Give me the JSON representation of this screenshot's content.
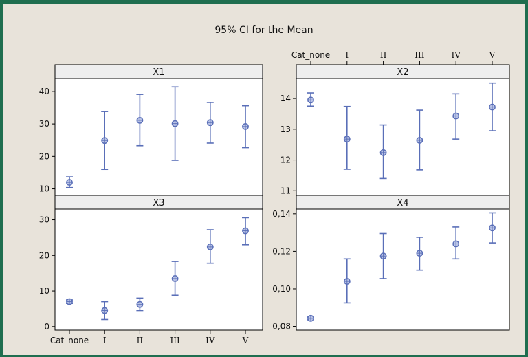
{
  "chart_data": {
    "type": "interval",
    "title": "95% CI for the Mean",
    "categories": [
      "Cat_none",
      "I",
      "II",
      "III",
      "IV",
      "V"
    ],
    "colors": {
      "frame": "#1f6e4f",
      "background": "#e8e3da",
      "panel": "#ffffff",
      "strip": "#eeeeee",
      "marker": "#5a6fb8",
      "interval": "#5a6fb8"
    },
    "panels": [
      {
        "name": "X1",
        "ylim": [
          8,
          44
        ],
        "yticks": [
          10,
          20,
          30,
          40
        ],
        "yticklabels": [
          "10",
          "20",
          "30",
          "40"
        ],
        "mean": [
          12.0,
          24.9,
          31.1,
          30.1,
          30.4,
          29.2
        ],
        "lower": [
          10.4,
          16.0,
          23.3,
          18.8,
          24.1,
          22.7
        ],
        "upper": [
          13.7,
          33.8,
          39.1,
          41.4,
          36.6,
          35.6
        ]
      },
      {
        "name": "X2",
        "ylim": [
          10.85,
          14.65
        ],
        "yticks": [
          11,
          12,
          13,
          14
        ],
        "yticklabels": [
          "11",
          "12",
          "13",
          "14"
        ],
        "mean": [
          13.95,
          12.68,
          12.24,
          12.64,
          13.43,
          13.72
        ],
        "lower": [
          13.75,
          11.7,
          11.4,
          11.68,
          12.68,
          12.95
        ],
        "upper": [
          14.18,
          13.74,
          13.14,
          13.62,
          14.15,
          14.5
        ]
      },
      {
        "name": "X3",
        "ylim": [
          -1,
          33
        ],
        "yticks": [
          0,
          10,
          20,
          30
        ],
        "yticklabels": [
          "0",
          "10",
          "20",
          "30"
        ],
        "mean": [
          7.0,
          4.5,
          6.2,
          13.5,
          22.4,
          26.9
        ],
        "lower": [
          6.5,
          2.0,
          4.5,
          8.8,
          17.8,
          23.0
        ],
        "upper": [
          7.5,
          7.0,
          8.0,
          18.3,
          27.2,
          30.6
        ]
      },
      {
        "name": "X4",
        "ylim": [
          0.078,
          0.1425
        ],
        "yticks": [
          0.08,
          0.1,
          0.12,
          0.14
        ],
        "yticklabels": [
          "0,08",
          "0,10",
          "0,12",
          "0,14"
        ],
        "mean": [
          0.0843,
          0.104,
          0.1175,
          0.119,
          0.124,
          0.1325
        ],
        "lower": [
          0.0835,
          0.0925,
          0.1055,
          0.11,
          0.116,
          0.1245
        ],
        "upper": [
          0.085,
          0.116,
          0.1295,
          0.1275,
          0.133,
          0.1405
        ]
      }
    ],
    "x_axis_positions": [
      "top-right",
      "bottom-left"
    ],
    "grid": false,
    "legend": "none"
  }
}
